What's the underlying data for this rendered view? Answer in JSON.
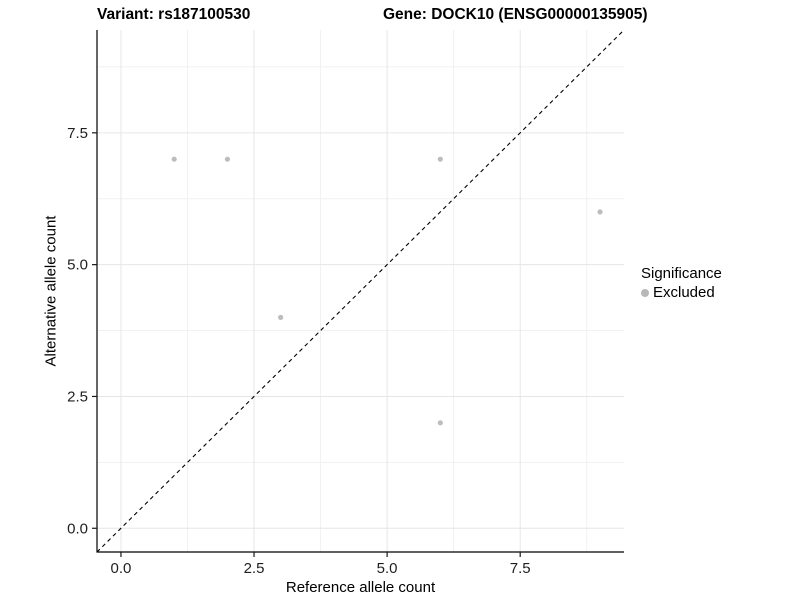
{
  "chart_data": {
    "type": "scatter",
    "titles": {
      "variant": "Variant: rs187100530",
      "gene": "Gene: DOCK10 (ENSG00000135905)"
    },
    "xlabel": "Reference allele count",
    "ylabel": "Alternative allele count",
    "xlim": [
      -0.45,
      9.45
    ],
    "ylim": [
      -0.45,
      9.45
    ],
    "x_ticks": {
      "values": [
        0,
        2.5,
        5,
        7.5
      ],
      "labels": [
        "0.0",
        "2.5",
        "5.0",
        "7.5"
      ]
    },
    "y_ticks": {
      "values": [
        0,
        2.5,
        5,
        7.5
      ],
      "labels": [
        "0.0",
        "2.5",
        "5.0",
        "7.5"
      ]
    },
    "minor_ticks": [
      1.25,
      3.75,
      6.25,
      8.75
    ],
    "grid": true,
    "series": [
      {
        "name": "Excluded",
        "color": "#bdbdbd",
        "point_radius": 2.6,
        "points": [
          [
            1,
            7
          ],
          [
            2,
            7
          ],
          [
            3,
            4
          ],
          [
            6,
            7
          ],
          [
            6,
            2
          ],
          [
            9,
            6
          ]
        ]
      }
    ],
    "identity_line": {
      "slope": 1,
      "intercept": 0,
      "style": "dashed",
      "color": "#000000"
    },
    "legend": {
      "position": "right",
      "title": "Significance",
      "entries": [
        {
          "label": "Excluded",
          "color": "#b8b8b8"
        }
      ]
    }
  },
  "colors": {
    "background": "#ffffff",
    "grid_major": "#e6e6e6",
    "grid_minor": "#f1f1f1",
    "axis_line": "#000000",
    "tick_mark": "#1a1a1a",
    "tick_label": "#1f1f1f",
    "point": "#bdbdbd"
  }
}
